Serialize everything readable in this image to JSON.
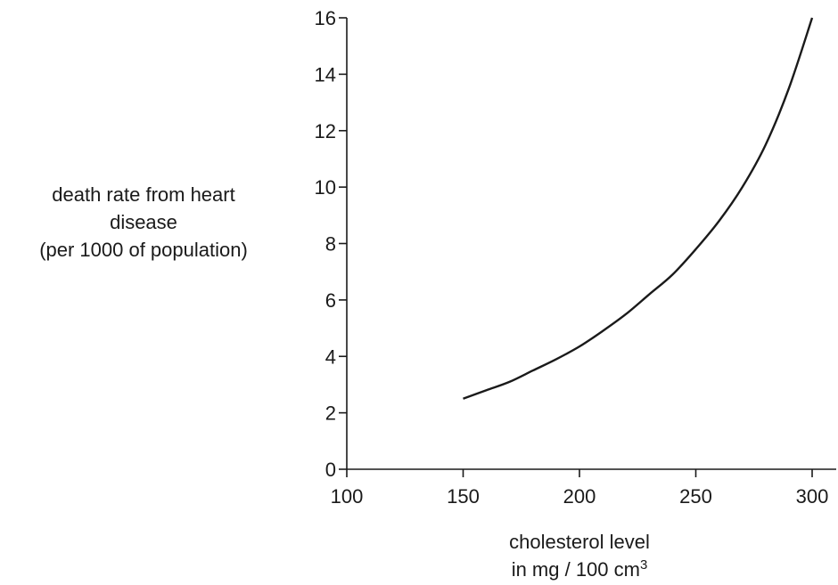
{
  "chart_data": {
    "type": "line",
    "ylabel_lines": [
      "death rate from heart",
      "disease",
      "(per 1000 of population)"
    ],
    "xlabel_line1": "cholesterol level",
    "xlabel_line2_prefix": "in mg / 100 cm",
    "xlabel_superscript": "3",
    "xlim": [
      100,
      310
    ],
    "ylim": [
      0,
      16
    ],
    "xticks": [
      100,
      150,
      200,
      250,
      300
    ],
    "yticks": [
      0,
      2,
      4,
      6,
      8,
      10,
      12,
      14,
      16
    ],
    "grid": false,
    "series": [
      {
        "x": [
          150,
          160,
          170,
          180,
          190,
          200,
          210,
          220,
          230,
          240,
          250,
          260,
          270,
          280,
          290,
          300
        ],
        "y": [
          2.5,
          2.8,
          3.1,
          3.5,
          3.9,
          4.35,
          4.9,
          5.5,
          6.2,
          6.9,
          7.8,
          8.8,
          10.0,
          11.5,
          13.5,
          16.0
        ]
      }
    ]
  }
}
